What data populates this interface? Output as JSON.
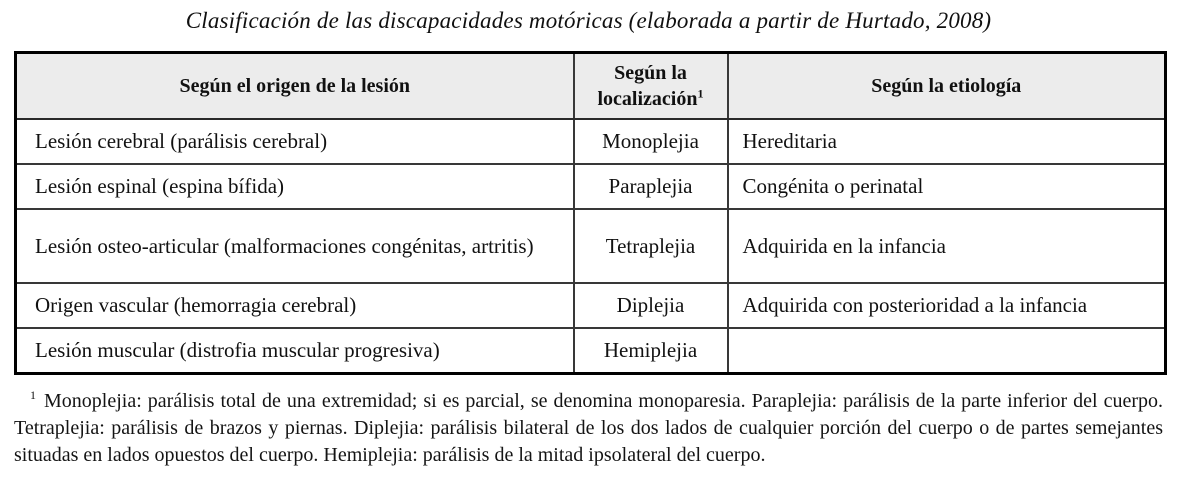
{
  "caption": "Clasificación de las discapacidades motóricas (elaborada a partir de Hurtado, 2008)",
  "colors": {
    "header_bg": "#ececec",
    "outer_border": "#000000",
    "inner_border": "#383838",
    "text": "#111111"
  },
  "table": {
    "headers": {
      "origin": "Según el origen de la lesión",
      "localization": "Según la localización",
      "localization_superscript": "1",
      "etiology": "Según la etiología"
    },
    "rows": [
      {
        "origin": "Lesión cerebral (parálisis cerebral)",
        "localization": "Monoplejia",
        "etiology": "Hereditaria"
      },
      {
        "origin": "Lesión espinal (espina bífida)",
        "localization": "Paraplejia",
        "etiology": "Congénita o perinatal"
      },
      {
        "origin": "Lesión osteo-articular (malformaciones congénitas, artritis)",
        "localization": "Tetraplejia",
        "etiology": "Adquirida en la infancia"
      },
      {
        "origin": "Origen vascular (hemorragia cerebral)",
        "localization": "Diplejia",
        "etiology": "Adquirida con posterioridad a la infancia"
      },
      {
        "origin": "Lesión muscular (distrofia muscular progresiva)",
        "localization": "Hemiplejia",
        "etiology": ""
      }
    ]
  },
  "footnote": {
    "marker": "1",
    "text": "Monoplejia: parálisis total de una extremidad; si es parcial, se denomina monoparesia. Paraplejia: parálisis de la parte inferior del cuerpo. Tetraplejia: parálisis de brazos y piernas. Diplejia: parálisis bilateral de los dos lados de cualquier porción del cuerpo o de partes semejantes situadas en lados opuestos del cuerpo. Hemiplejia: parálisis de la mitad ipsolateral del cuerpo."
  }
}
